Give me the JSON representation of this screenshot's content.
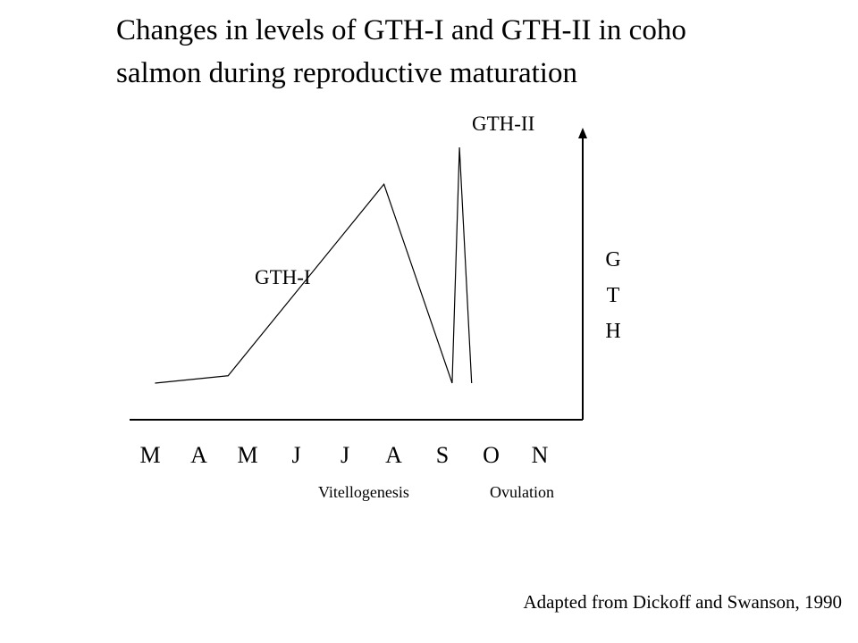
{
  "title_line1": "Changes in levels of GTH-I and GTH-II in coho",
  "title_line2": "salmon during reproductive maturation",
  "credit": "Adapted from Dickoff and Swanson, 1990",
  "chart_data": {
    "type": "line",
    "title": "Changes in levels of GTH-I and GTH-II in coho salmon during reproductive maturation",
    "xlabel": "",
    "ylabel": "GTH",
    "categories": [
      "M",
      "A",
      "M",
      "J",
      "J",
      "A",
      "S",
      "O",
      "N"
    ],
    "grid": false,
    "axis_ticks": false,
    "y_axis_side": "right",
    "series": [
      {
        "name": "GTH-I",
        "points": [
          {
            "x": 0.1,
            "y": 0.04
          },
          {
            "x": 1.6,
            "y": 0.07
          },
          {
            "x": 4.8,
            "y": 0.85
          },
          {
            "x": 6.2,
            "y": 0.04
          }
        ]
      },
      {
        "name": "GTH-II",
        "points": [
          {
            "x": 6.2,
            "y": 0.04
          },
          {
            "x": 6.35,
            "y": 1.0
          },
          {
            "x": 6.6,
            "y": 0.04
          }
        ]
      }
    ],
    "annotations": [
      "Vitellogenesis",
      "Ovulation"
    ]
  }
}
